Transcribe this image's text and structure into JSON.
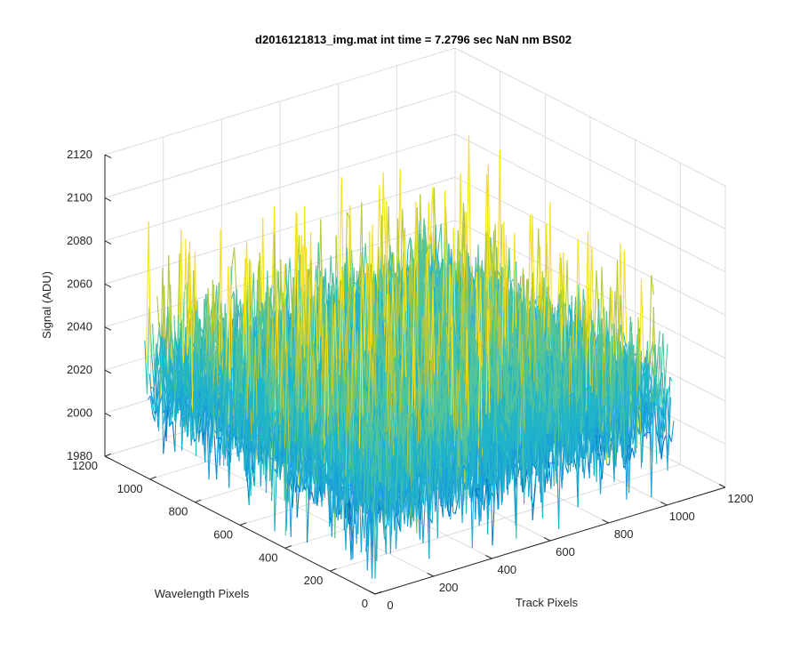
{
  "chart_data": {
    "type": "surface",
    "title": "d2016121813_img.mat int time = 7.2796 sec  NaN nm BS02",
    "xlabel": "Track Pixels",
    "ylabel": "Wavelength Pixels",
    "zlabel": "Signal (ADU)",
    "xlim": [
      0,
      1200
    ],
    "ylim": [
      0,
      1200
    ],
    "zlim": [
      1980,
      2120
    ],
    "x_ticks": [
      "0",
      "200",
      "400",
      "600",
      "800",
      "1000",
      "1200"
    ],
    "y_ticks": [
      "0",
      "200",
      "400",
      "600",
      "800",
      "1000",
      "1200"
    ],
    "z_ticks": [
      "1980",
      "2000",
      "2020",
      "2040",
      "2060",
      "2080",
      "2100",
      "2120"
    ],
    "data_extent": {
      "x": [
        1,
        1024
      ],
      "y": [
        1,
        1024
      ]
    },
    "mean_signal": 2028,
    "signal_range": [
      1980,
      2112
    ],
    "grid": true,
    "colormap": "parula",
    "colors": [
      "#0072BD",
      "#1A9FD9",
      "#21B4C8",
      "#52C39A",
      "#B4C93C",
      "#F5E11E"
    ]
  }
}
